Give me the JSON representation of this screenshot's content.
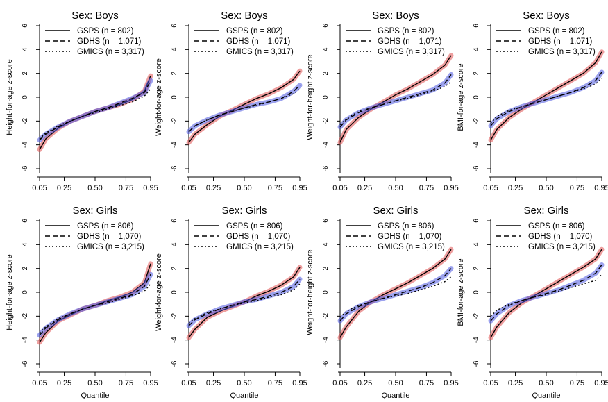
{
  "chart_data": [
    {
      "type": "line",
      "title": "Sex: Boys",
      "ylabel": "Height-for-age z-score",
      "xlabel": "",
      "xlim": [
        0.05,
        0.95
      ],
      "ylim": [
        -6,
        6
      ],
      "xticks": [
        "0.05",
        "0.25",
        "0.50",
        "0.75",
        "0.95"
      ],
      "yticks": [
        "-6",
        "-4",
        "-2",
        "0",
        "2",
        "4",
        "6"
      ],
      "legend_position": "top-left",
      "x": [
        0.05,
        0.1,
        0.2,
        0.3,
        0.4,
        0.5,
        0.6,
        0.7,
        0.8,
        0.9,
        0.95
      ],
      "series": [
        {
          "name": "GSPS (n = 802)",
          "line_style": "solid",
          "band_color": "#e05050",
          "values": [
            -4.4,
            -3.5,
            -2.6,
            -2.0,
            -1.6,
            -1.2,
            -0.9,
            -0.6,
            -0.2,
            0.5,
            1.8
          ]
        },
        {
          "name": "GDHS (n = 1,071)",
          "line_style": "dashed",
          "band_color": "#4a55e0",
          "values": [
            -3.6,
            -3.1,
            -2.5,
            -2.0,
            -1.6,
            -1.2,
            -0.9,
            -0.5,
            -0.1,
            0.4,
            1.4
          ]
        },
        {
          "name": "GMICS (n = 3,317)",
          "line_style": "dotted",
          "values": [
            -3.5,
            -3.0,
            -2.4,
            -2.0,
            -1.6,
            -1.3,
            -1.0,
            -0.7,
            -0.4,
            0.1,
            0.7
          ]
        }
      ]
    },
    {
      "type": "line",
      "title": "Sex: Boys",
      "ylabel": "Weight-for-age z-score",
      "xlabel": "",
      "xlim": [
        0.05,
        0.95
      ],
      "ylim": [
        -6,
        6
      ],
      "xticks": [
        "0.05",
        "0.25",
        "0.50",
        "0.75",
        "0.95"
      ],
      "yticks": [
        "-6",
        "-4",
        "-2",
        "0",
        "2",
        "4",
        "6"
      ],
      "legend_position": "top-left",
      "x": [
        0.05,
        0.1,
        0.2,
        0.3,
        0.4,
        0.5,
        0.6,
        0.7,
        0.8,
        0.9,
        0.95
      ],
      "series": [
        {
          "name": "GSPS (n = 802)",
          "line_style": "solid",
          "band_color": "#e05050",
          "values": [
            -3.8,
            -3.1,
            -2.3,
            -1.6,
            -1.1,
            -0.6,
            -0.1,
            0.3,
            0.8,
            1.5,
            2.2
          ]
        },
        {
          "name": "GDHS (n = 1,071)",
          "line_style": "dashed",
          "band_color": "#4a55e0",
          "values": [
            -2.9,
            -2.4,
            -1.9,
            -1.5,
            -1.2,
            -0.9,
            -0.6,
            -0.4,
            -0.1,
            0.5,
            1.0
          ]
        },
        {
          "name": "GMICS (n = 3,317)",
          "line_style": "dotted",
          "values": [
            -2.9,
            -2.4,
            -1.9,
            -1.5,
            -1.2,
            -0.9,
            -0.7,
            -0.4,
            -0.1,
            0.3,
            0.7
          ]
        }
      ]
    },
    {
      "type": "line",
      "title": "Sex: Boys",
      "ylabel": "Weight-for-height z-score",
      "xlabel": "",
      "xlim": [
        0.05,
        0.95
      ],
      "ylim": [
        -6,
        6
      ],
      "xticks": [
        "0.05",
        "0.25",
        "0.50",
        "0.75",
        "0.95"
      ],
      "yticks": [
        "-6",
        "-4",
        "-2",
        "0",
        "2",
        "4",
        "6"
      ],
      "legend_position": "top-left",
      "x": [
        0.05,
        0.1,
        0.2,
        0.3,
        0.4,
        0.5,
        0.6,
        0.7,
        0.8,
        0.9,
        0.95
      ],
      "series": [
        {
          "name": "GSPS (n = 802)",
          "line_style": "solid",
          "band_color": "#e05050",
          "values": [
            -3.8,
            -2.7,
            -1.7,
            -1.0,
            -0.4,
            0.2,
            0.7,
            1.3,
            1.9,
            2.7,
            3.5
          ]
        },
        {
          "name": "GDHS (n = 1,071)",
          "line_style": "dashed",
          "band_color": "#4a55e0",
          "values": [
            -2.5,
            -1.9,
            -1.3,
            -0.9,
            -0.6,
            -0.3,
            0.0,
            0.3,
            0.6,
            1.2,
            1.9
          ]
        },
        {
          "name": "GMICS (n = 3,317)",
          "line_style": "dotted",
          "values": [
            -2.3,
            -1.8,
            -1.2,
            -0.9,
            -0.6,
            -0.3,
            -0.1,
            0.2,
            0.5,
            0.9,
            1.3
          ]
        }
      ]
    },
    {
      "type": "line",
      "title": "Sex: Boys",
      "ylabel": "BMI-for-age z-score",
      "xlabel": "",
      "xlim": [
        0.05,
        0.95
      ],
      "ylim": [
        -6,
        6
      ],
      "xticks": [
        "0.05",
        "0.25",
        "0.50",
        "0.75",
        "0.95"
      ],
      "yticks": [
        "-6",
        "-4",
        "-2",
        "0",
        "2",
        "4",
        "6"
      ],
      "legend_position": "top-left",
      "x": [
        0.05,
        0.1,
        0.2,
        0.3,
        0.4,
        0.5,
        0.6,
        0.7,
        0.8,
        0.9,
        0.95
      ],
      "series": [
        {
          "name": "GSPS (n = 802)",
          "line_style": "solid",
          "band_color": "#e05050",
          "values": [
            -3.6,
            -2.7,
            -1.7,
            -1.0,
            -0.4,
            0.2,
            0.8,
            1.4,
            2.0,
            2.9,
            3.8
          ]
        },
        {
          "name": "GDHS (n = 1,071)",
          "line_style": "dashed",
          "band_color": "#4a55e0",
          "values": [
            -2.4,
            -1.8,
            -1.2,
            -0.8,
            -0.5,
            -0.2,
            0.1,
            0.4,
            0.8,
            1.4,
            2.1
          ]
        },
        {
          "name": "GMICS (n = 3,317)",
          "line_style": "dotted",
          "values": [
            -2.2,
            -1.6,
            -1.1,
            -0.8,
            -0.5,
            -0.2,
            0.1,
            0.4,
            0.7,
            1.1,
            1.6
          ]
        }
      ]
    },
    {
      "type": "line",
      "title": "Sex: Girls",
      "ylabel": "Height-for-age z-score",
      "xlabel": "Quantile",
      "xlim": [
        0.05,
        0.95
      ],
      "ylim": [
        -6,
        6
      ],
      "xticks": [
        "0.05",
        "0.25",
        "0.50",
        "0.75",
        "0.95"
      ],
      "yticks": [
        "-6",
        "-4",
        "-2",
        "0",
        "2",
        "4",
        "6"
      ],
      "legend_position": "top-left",
      "x": [
        0.05,
        0.1,
        0.2,
        0.3,
        0.4,
        0.5,
        0.6,
        0.7,
        0.8,
        0.9,
        0.95
      ],
      "series": [
        {
          "name": "GSPS (n = 806)",
          "line_style": "solid",
          "band_color": "#e05050",
          "values": [
            -4.2,
            -3.4,
            -2.4,
            -1.9,
            -1.4,
            -1.1,
            -0.7,
            -0.4,
            0.0,
            0.8,
            2.4
          ]
        },
        {
          "name": "GDHS (n = 1,070)",
          "line_style": "dashed",
          "band_color": "#4a55e0",
          "values": [
            -3.6,
            -3.0,
            -2.3,
            -1.8,
            -1.4,
            -1.1,
            -0.8,
            -0.5,
            -0.2,
            0.5,
            1.5
          ]
        },
        {
          "name": "GMICS (n = 3,215)",
          "line_style": "dotted",
          "values": [
            -3.4,
            -2.9,
            -2.2,
            -1.8,
            -1.4,
            -1.1,
            -0.9,
            -0.6,
            -0.3,
            0.1,
            0.7
          ]
        }
      ]
    },
    {
      "type": "line",
      "title": "Sex: Girls",
      "ylabel": "Weight-for-age z-score",
      "xlabel": "Quantile",
      "xlim": [
        0.05,
        0.95
      ],
      "ylim": [
        -6,
        6
      ],
      "xticks": [
        "0.05",
        "0.25",
        "0.50",
        "0.75",
        "0.95"
      ],
      "yticks": [
        "-6",
        "-4",
        "-2",
        "0",
        "2",
        "4",
        "6"
      ],
      "legend_position": "top-left",
      "x": [
        0.05,
        0.1,
        0.2,
        0.3,
        0.4,
        0.5,
        0.6,
        0.7,
        0.8,
        0.9,
        0.95
      ],
      "series": [
        {
          "name": "GSPS (n = 806)",
          "line_style": "solid",
          "band_color": "#e05050",
          "values": [
            -3.8,
            -3.1,
            -2.1,
            -1.6,
            -1.2,
            -0.8,
            -0.3,
            0.1,
            0.6,
            1.3,
            2.1
          ]
        },
        {
          "name": "GDHS (n = 1,070)",
          "line_style": "dashed",
          "band_color": "#4a55e0",
          "values": [
            -2.8,
            -2.3,
            -1.8,
            -1.4,
            -1.1,
            -0.8,
            -0.6,
            -0.3,
            0.0,
            0.5,
            1.1
          ]
        },
        {
          "name": "GMICS (n = 3,215)",
          "line_style": "dotted",
          "values": [
            -2.6,
            -2.2,
            -1.7,
            -1.4,
            -1.1,
            -0.9,
            -0.7,
            -0.4,
            -0.2,
            0.2,
            0.7
          ]
        }
      ]
    },
    {
      "type": "line",
      "title": "Sex: Girls",
      "ylabel": "Weight-for-height z-score",
      "xlabel": "Quantile",
      "xlim": [
        0.05,
        0.95
      ],
      "ylim": [
        -6,
        6
      ],
      "xticks": [
        "0.05",
        "0.25",
        "0.50",
        "0.75",
        "0.95"
      ],
      "yticks": [
        "-6",
        "-4",
        "-2",
        "0",
        "2",
        "4",
        "6"
      ],
      "legend_position": "top-left",
      "x": [
        0.05,
        0.1,
        0.2,
        0.3,
        0.4,
        0.5,
        0.6,
        0.7,
        0.8,
        0.9,
        0.95
      ],
      "series": [
        {
          "name": "GSPS (n = 806)",
          "line_style": "solid",
          "band_color": "#e05050",
          "values": [
            -3.8,
            -2.9,
            -1.6,
            -0.8,
            -0.2,
            0.3,
            0.8,
            1.4,
            2.0,
            2.8,
            3.6
          ]
        },
        {
          "name": "GDHS (n = 1,070)",
          "line_style": "dashed",
          "band_color": "#4a55e0",
          "values": [
            -2.4,
            -1.8,
            -1.2,
            -0.8,
            -0.5,
            -0.2,
            0.1,
            0.4,
            0.8,
            1.4,
            2.0
          ]
        },
        {
          "name": "GMICS (n = 3,215)",
          "line_style": "dotted",
          "values": [
            -2.1,
            -1.6,
            -1.1,
            -0.8,
            -0.5,
            -0.3,
            -0.1,
            0.2,
            0.5,
            0.9,
            1.3
          ]
        }
      ]
    },
    {
      "type": "line",
      "title": "Sex: Girls",
      "ylabel": "BMI-for-age z-score",
      "xlabel": "Quantile",
      "xlim": [
        0.05,
        0.95
      ],
      "ylim": [
        -6,
        6
      ],
      "xticks": [
        "0.05",
        "0.25",
        "0.50",
        "0.75",
        "0.95"
      ],
      "yticks": [
        "-6",
        "-4",
        "-2",
        "0",
        "2",
        "4",
        "6"
      ],
      "legend_position": "top-left",
      "x": [
        0.05,
        0.1,
        0.2,
        0.3,
        0.4,
        0.5,
        0.6,
        0.7,
        0.8,
        0.9,
        0.95
      ],
      "series": [
        {
          "name": "GSPS (n = 806)",
          "line_style": "solid",
          "band_color": "#e05050",
          "values": [
            -3.8,
            -2.9,
            -1.7,
            -0.9,
            -0.3,
            0.3,
            0.9,
            1.5,
            2.1,
            2.8,
            3.6
          ]
        },
        {
          "name": "GDHS (n = 1,070)",
          "line_style": "dashed",
          "band_color": "#4a55e0",
          "values": [
            -2.4,
            -1.8,
            -1.1,
            -0.7,
            -0.4,
            -0.1,
            0.2,
            0.6,
            1.0,
            1.6,
            2.3
          ]
        },
        {
          "name": "GMICS (n = 3,215)",
          "line_style": "dotted",
          "values": [
            -2.0,
            -1.5,
            -1.0,
            -0.7,
            -0.4,
            -0.2,
            0.1,
            0.4,
            0.7,
            1.0,
            1.5
          ]
        }
      ]
    }
  ]
}
